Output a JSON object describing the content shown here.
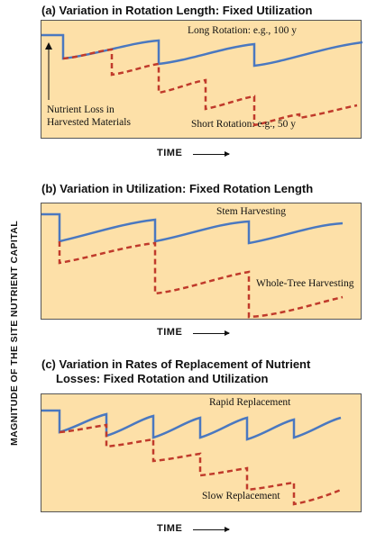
{
  "y_axis_label": "Magnitude of the Site Nutrient Capital",
  "time_label": "Time",
  "panels": [
    {
      "title": "(a) Variation in Rotation Length: Fixed Utilization",
      "labels": {
        "solid": "Long Rotation: e.g., 100 y",
        "dashed": "Short Rotation: e.g., 50 y",
        "annotation_line1": "Nutrient Loss in",
        "annotation_line2": "Harvested Materials"
      }
    },
    {
      "title": "(b) Variation in Utilization: Fixed Rotation Length",
      "labels": {
        "solid": "Stem Harvesting",
        "dashed": "Whole-Tree Harvesting"
      }
    },
    {
      "title_line1": "(c) Variation in Rates of Replacement of Nutrient",
      "title_line2": "Losses: Fixed Rotation and Utilization",
      "labels": {
        "solid": "Rapid Replacement",
        "dashed": "Slow Replacement"
      }
    }
  ],
  "colors": {
    "solid": "#4a78c0",
    "dashed": "#c03a2b",
    "panel": "#fde0a8"
  }
}
